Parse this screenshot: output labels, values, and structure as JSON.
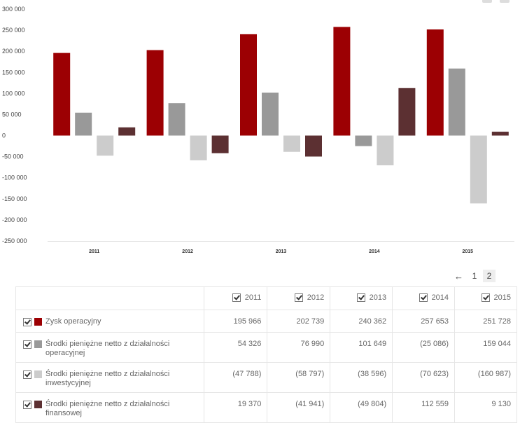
{
  "chart_data": {
    "type": "bar",
    "categories": [
      "2011",
      "2012",
      "2013",
      "2014",
      "2015"
    ],
    "series": [
      {
        "name": "Zysk operacyjny",
        "color": "#9c0003",
        "values": [
          195966,
          202739,
          240362,
          257653,
          251728
        ]
      },
      {
        "name": "Środki pieniężne netto z działalności operacyjnej",
        "color": "#999999",
        "values": [
          54326,
          76990,
          101649,
          -25086,
          159044
        ]
      },
      {
        "name": "Środki pieniężne netto z działalności inwestycyjnej",
        "color": "#cccccc",
        "values": [
          -47788,
          -58797,
          -38596,
          -70623,
          -160987
        ]
      },
      {
        "name": "Środki pieniężne netto z działalności finansowej",
        "color": "#5c3032",
        "values": [
          19370,
          -41941,
          -49804,
          112559,
          9130
        ]
      }
    ],
    "yticks": [
      "300 000",
      "250 000",
      "200 000",
      "150 000",
      "100 000",
      "50 000",
      "0",
      "-50 000",
      "-100 000",
      "-150 000",
      "-200 000",
      "-250 000"
    ],
    "ylim": [
      -250000,
      300000
    ],
    "grid": false,
    "title": "",
    "xlabel": "",
    "ylabel": ""
  },
  "pager": {
    "prev": "←",
    "pages": [
      "1",
      "2"
    ],
    "active": "2"
  },
  "table": {
    "years": [
      "2011",
      "2012",
      "2013",
      "2014",
      "2015"
    ],
    "rows": [
      {
        "label_lines": [
          "Zysk operacyjny"
        ],
        "color": "#9c0003",
        "cells": [
          "195 966",
          "202 739",
          "240 362",
          "257 653",
          "251 728"
        ]
      },
      {
        "label_lines": [
          "Środki pieniężne netto z działalności",
          "operacyjnej"
        ],
        "color": "#999999",
        "cells": [
          "54 326",
          "76 990",
          "101 649",
          "(25 086)",
          "159 044"
        ]
      },
      {
        "label_lines": [
          "Środki pieniężne netto z działalności",
          "inwestycyjnej"
        ],
        "color": "#cccccc",
        "cells": [
          "(47 788)",
          "(58 797)",
          "(38 596)",
          "(70 623)",
          "(160 987)"
        ]
      },
      {
        "label_lines": [
          "Środki pieniężne netto z działalności",
          "finansowej"
        ],
        "color": "#5c3032",
        "cells": [
          "19 370",
          "(41 941)",
          "(49 804)",
          "112 559",
          "9 130"
        ]
      }
    ]
  }
}
